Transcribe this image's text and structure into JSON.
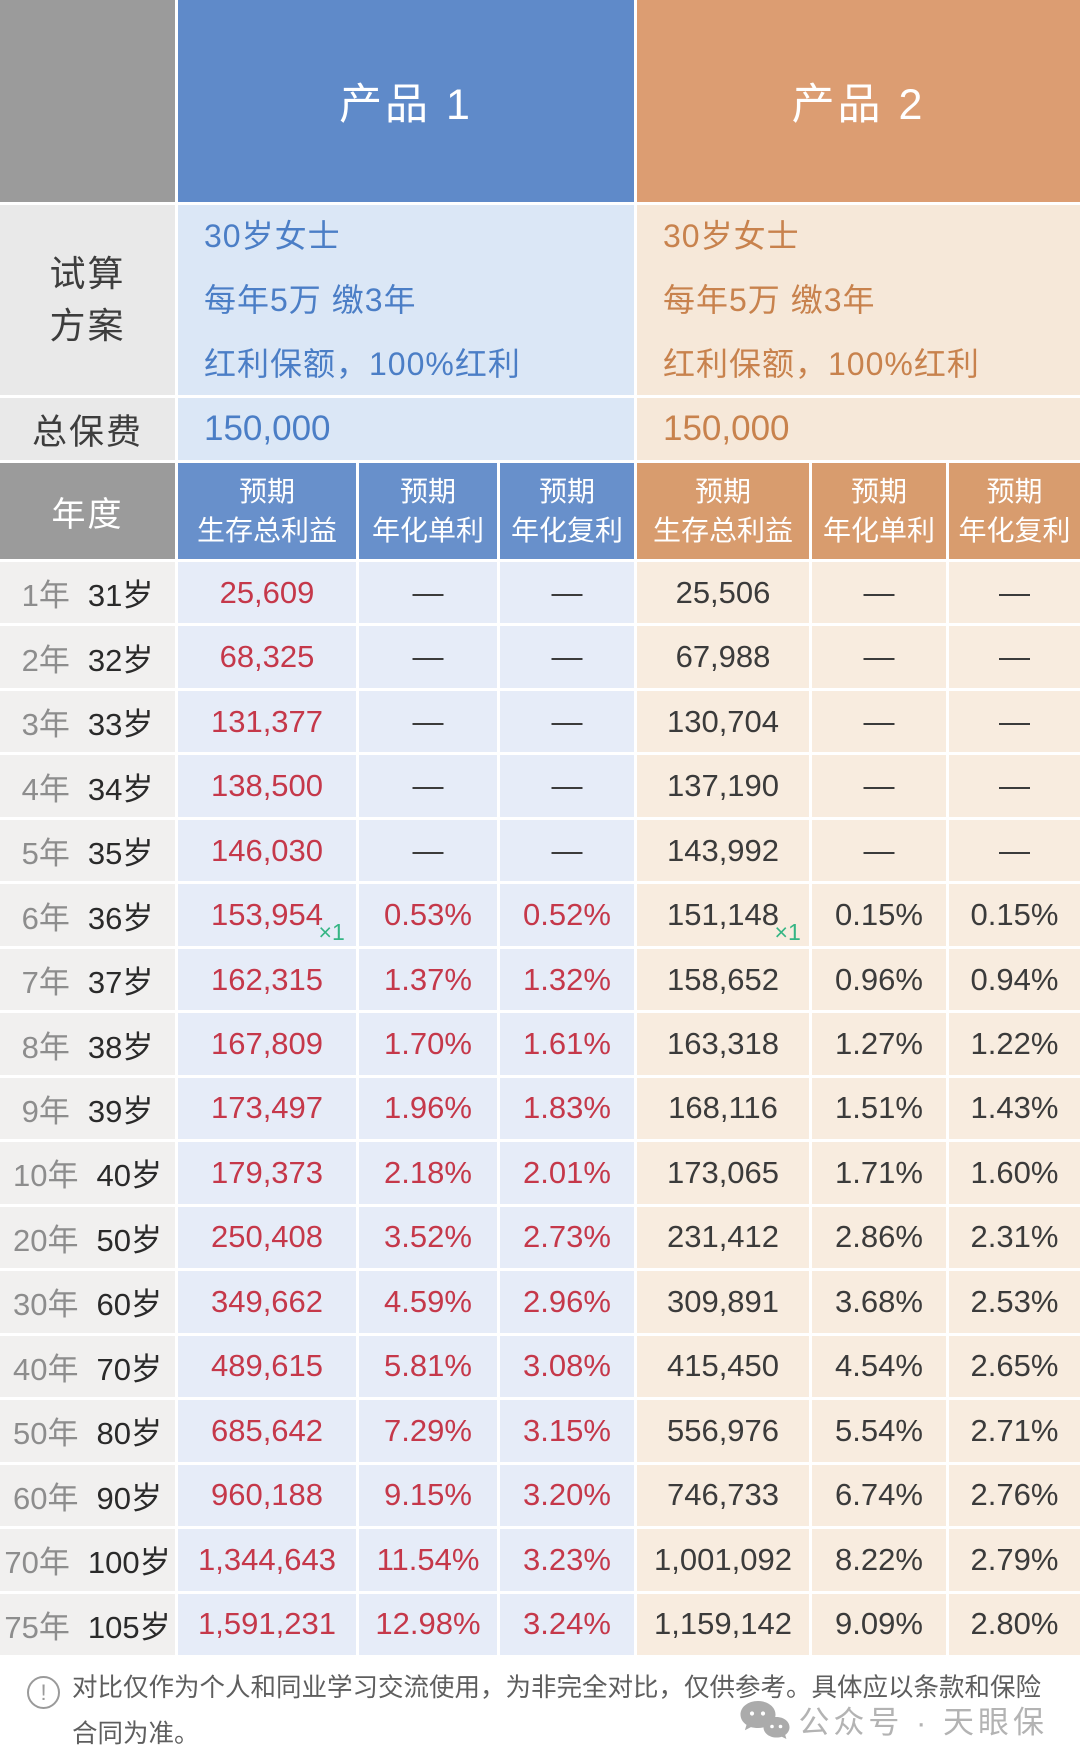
{
  "colors": {
    "header_gray": "#9b9b9b",
    "note_green": "#35b584",
    "p1": {
      "main": "#5f8ac9",
      "col_header": "#6890cb",
      "light_bg": "#dbe7f6",
      "cell_bg": "#e6ecf8",
      "text": "#4b7ec6",
      "value": "#c5384a"
    },
    "p2": {
      "main": "#dc9d72",
      "col_header": "#d89c6e",
      "light_bg": "#f6e8d9",
      "cell_bg": "#f8ecdf",
      "text": "#c8824d",
      "value": "#3b3b3b"
    }
  },
  "labels": {
    "plan_lines": [
      "试算",
      "方案"
    ],
    "total_premium": "总保费",
    "year": "年度"
  },
  "products": [
    {
      "name": "产品 1",
      "plan_lines": [
        "30岁女士",
        "每年5万 缴3年",
        "红利保额，100%红利"
      ],
      "total_premium": "150,000"
    },
    {
      "name": "产品 2",
      "plan_lines": [
        "30岁女士",
        "每年5万 缴3年",
        "红利保额，100%红利"
      ],
      "total_premium": "150,000"
    }
  ],
  "column_headers": [
    {
      "line1": "预期",
      "line2": "生存总利益"
    },
    {
      "line1": "预期",
      "line2": "年化单利"
    },
    {
      "line1": "预期",
      "line2": "年化复利"
    }
  ],
  "rows": [
    {
      "year": "1年",
      "age": "31岁",
      "p1": [
        "25,609",
        "—",
        "—"
      ],
      "p2": [
        "25,506",
        "—",
        "—"
      ]
    },
    {
      "year": "2年",
      "age": "32岁",
      "p1": [
        "68,325",
        "—",
        "—"
      ],
      "p2": [
        "67,988",
        "—",
        "—"
      ]
    },
    {
      "year": "3年",
      "age": "33岁",
      "p1": [
        "131,377",
        "—",
        "—"
      ],
      "p2": [
        "130,704",
        "—",
        "—"
      ]
    },
    {
      "year": "4年",
      "age": "34岁",
      "p1": [
        "138,500",
        "—",
        "—"
      ],
      "p2": [
        "137,190",
        "—",
        "—"
      ]
    },
    {
      "year": "5年",
      "age": "35岁",
      "p1": [
        "146,030",
        "—",
        "—"
      ],
      "p2": [
        "143,992",
        "—",
        "—"
      ]
    },
    {
      "year": "6年",
      "age": "36岁",
      "p1": [
        "153,954",
        "0.53%",
        "0.52%"
      ],
      "p2": [
        "151,148",
        "0.15%",
        "0.15%"
      ],
      "p1_note": "×1",
      "p2_note": "×1"
    },
    {
      "year": "7年",
      "age": "37岁",
      "p1": [
        "162,315",
        "1.37%",
        "1.32%"
      ],
      "p2": [
        "158,652",
        "0.96%",
        "0.94%"
      ]
    },
    {
      "year": "8年",
      "age": "38岁",
      "p1": [
        "167,809",
        "1.70%",
        "1.61%"
      ],
      "p2": [
        "163,318",
        "1.27%",
        "1.22%"
      ]
    },
    {
      "year": "9年",
      "age": "39岁",
      "p1": [
        "173,497",
        "1.96%",
        "1.83%"
      ],
      "p2": [
        "168,116",
        "1.51%",
        "1.43%"
      ]
    },
    {
      "year": "10年",
      "age": "40岁",
      "p1": [
        "179,373",
        "2.18%",
        "2.01%"
      ],
      "p2": [
        "173,065",
        "1.71%",
        "1.60%"
      ]
    },
    {
      "year": "20年",
      "age": "50岁",
      "p1": [
        "250,408",
        "3.52%",
        "2.73%"
      ],
      "p2": [
        "231,412",
        "2.86%",
        "2.31%"
      ]
    },
    {
      "year": "30年",
      "age": "60岁",
      "p1": [
        "349,662",
        "4.59%",
        "2.96%"
      ],
      "p2": [
        "309,891",
        "3.68%",
        "2.53%"
      ]
    },
    {
      "year": "40年",
      "age": "70岁",
      "p1": [
        "489,615",
        "5.81%",
        "3.08%"
      ],
      "p2": [
        "415,450",
        "4.54%",
        "2.65%"
      ]
    },
    {
      "year": "50年",
      "age": "80岁",
      "p1": [
        "685,642",
        "7.29%",
        "3.15%"
      ],
      "p2": [
        "556,976",
        "5.54%",
        "2.71%"
      ]
    },
    {
      "year": "60年",
      "age": "90岁",
      "p1": [
        "960,188",
        "9.15%",
        "3.20%"
      ],
      "p2": [
        "746,733",
        "6.74%",
        "2.76%"
      ]
    },
    {
      "year": "70年",
      "age": "100岁",
      "p1": [
        "1,344,643",
        "11.54%",
        "3.23%"
      ],
      "p2": [
        "1,001,092",
        "8.22%",
        "2.79%"
      ]
    },
    {
      "year": "75年",
      "age": "105岁",
      "p1": [
        "1,591,231",
        "12.98%",
        "3.24%"
      ],
      "p2": [
        "1,159,142",
        "9.09%",
        "2.80%"
      ]
    }
  ],
  "footer": {
    "disclaimer": "对比仅作为个人和同业学习交流使用，为非完全对比，仅供参考。具体应以条款和保险合同为准。",
    "watermark": "公众号 · 天眼保",
    "warning_icon": "exclamation-circle-icon",
    "watermark_icon": "chat-bubbles-icon"
  },
  "chart_data": {
    "type": "table",
    "title": "产品 1 / 产品 2 对比",
    "plan": {
      "产品 1": "30岁女士；每年5万 缴3年；红利保额，100%红利；总保费 150,000",
      "产品 2": "30岁女士；每年5万 缴3年；红利保额，100%红利；总保费 150,000"
    },
    "columns": [
      "年度",
      "产品1 预期生存总利益",
      "产品1 预期年化单利",
      "产品1 预期年化复利",
      "产品2 预期生存总利益",
      "产品2 预期年化单利",
      "产品2 预期年化复利"
    ],
    "rows": [
      [
        "1年 31岁",
        "25,609",
        "—",
        "—",
        "25,506",
        "—",
        "—"
      ],
      [
        "2年 32岁",
        "68,325",
        "—",
        "—",
        "67,988",
        "—",
        "—"
      ],
      [
        "3年 33岁",
        "131,377",
        "—",
        "—",
        "130,704",
        "—",
        "—"
      ],
      [
        "4年 34岁",
        "138,500",
        "—",
        "—",
        "137,190",
        "—",
        "—"
      ],
      [
        "5年 35岁",
        "146,030",
        "—",
        "—",
        "143,992",
        "—",
        "—"
      ],
      [
        "6年 36岁",
        "153,954 ×1",
        "0.53%",
        "0.52%",
        "151,148 ×1",
        "0.15%",
        "0.15%"
      ],
      [
        "7年 37岁",
        "162,315",
        "1.37%",
        "1.32%",
        "158,652",
        "0.96%",
        "0.94%"
      ],
      [
        "8年 38岁",
        "167,809",
        "1.70%",
        "1.61%",
        "163,318",
        "1.27%",
        "1.22%"
      ],
      [
        "9年 39岁",
        "173,497",
        "1.96%",
        "1.83%",
        "168,116",
        "1.51%",
        "1.43%"
      ],
      [
        "10年 40岁",
        "179,373",
        "2.18%",
        "2.01%",
        "173,065",
        "1.71%",
        "1.60%"
      ],
      [
        "20年 50岁",
        "250,408",
        "3.52%",
        "2.73%",
        "231,412",
        "2.86%",
        "2.31%"
      ],
      [
        "30年 60岁",
        "349,662",
        "4.59%",
        "2.96%",
        "309,891",
        "3.68%",
        "2.53%"
      ],
      [
        "40年 70岁",
        "489,615",
        "5.81%",
        "3.08%",
        "415,450",
        "4.54%",
        "2.65%"
      ],
      [
        "50年 80岁",
        "685,642",
        "7.29%",
        "3.15%",
        "556,976",
        "5.54%",
        "2.71%"
      ],
      [
        "60年 90岁",
        "960,188",
        "9.15%",
        "3.20%",
        "746,733",
        "6.74%",
        "2.76%"
      ],
      [
        "70年 100岁",
        "1,344,643",
        "11.54%",
        "3.23%",
        "1,001,092",
        "8.22%",
        "2.79%"
      ],
      [
        "75年 105岁",
        "1,591,231",
        "12.98%",
        "3.24%",
        "1,159,142",
        "9.09%",
        "2.80%"
      ]
    ]
  }
}
